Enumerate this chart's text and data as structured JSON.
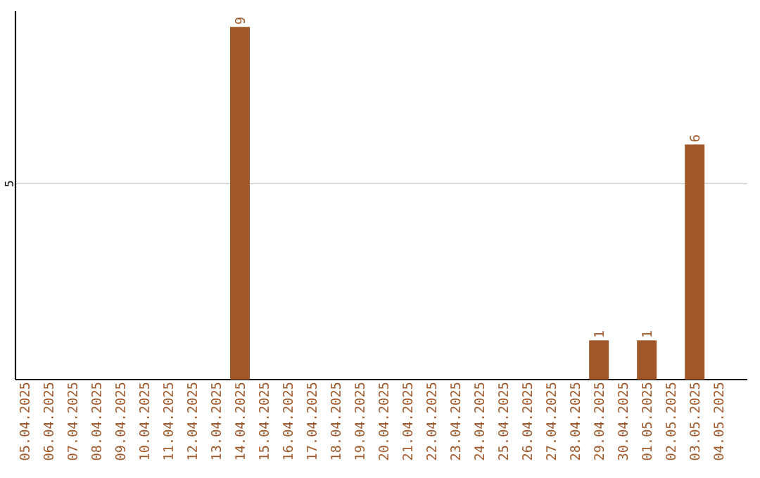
{
  "chart_data": {
    "type": "bar",
    "categories": [
      "05.04.2025",
      "06.04.2025",
      "07.04.2025",
      "08.04.2025",
      "09.04.2025",
      "10.04.2025",
      "11.04.2025",
      "12.04.2025",
      "13.04.2025",
      "14.04.2025",
      "15.04.2025",
      "16.04.2025",
      "17.04.2025",
      "18.04.2025",
      "19.04.2025",
      "20.04.2025",
      "21.04.2025",
      "22.04.2025",
      "23.04.2025",
      "24.04.2025",
      "25.04.2025",
      "26.04.2025",
      "27.04.2025",
      "28.04.2025",
      "29.04.2025",
      "30.04.2025",
      "01.05.2025",
      "02.05.2025",
      "03.05.2025",
      "04.05.2025"
    ],
    "values": [
      0,
      0,
      0,
      0,
      0,
      0,
      0,
      0,
      0,
      9,
      0,
      0,
      0,
      0,
      0,
      0,
      0,
      0,
      0,
      0,
      0,
      0,
      0,
      0,
      1,
      0,
      1,
      0,
      6,
      0
    ],
    "value_labels": [
      null,
      null,
      null,
      null,
      null,
      null,
      null,
      null,
      null,
      "9",
      null,
      null,
      null,
      null,
      null,
      null,
      null,
      null,
      null,
      null,
      null,
      null,
      null,
      null,
      "1",
      null,
      "1",
      null,
      "6",
      null
    ],
    "color": "#a0582a",
    "ylim": [
      0,
      9.4
    ],
    "yticks": [
      5
    ],
    "grid": "y"
  }
}
